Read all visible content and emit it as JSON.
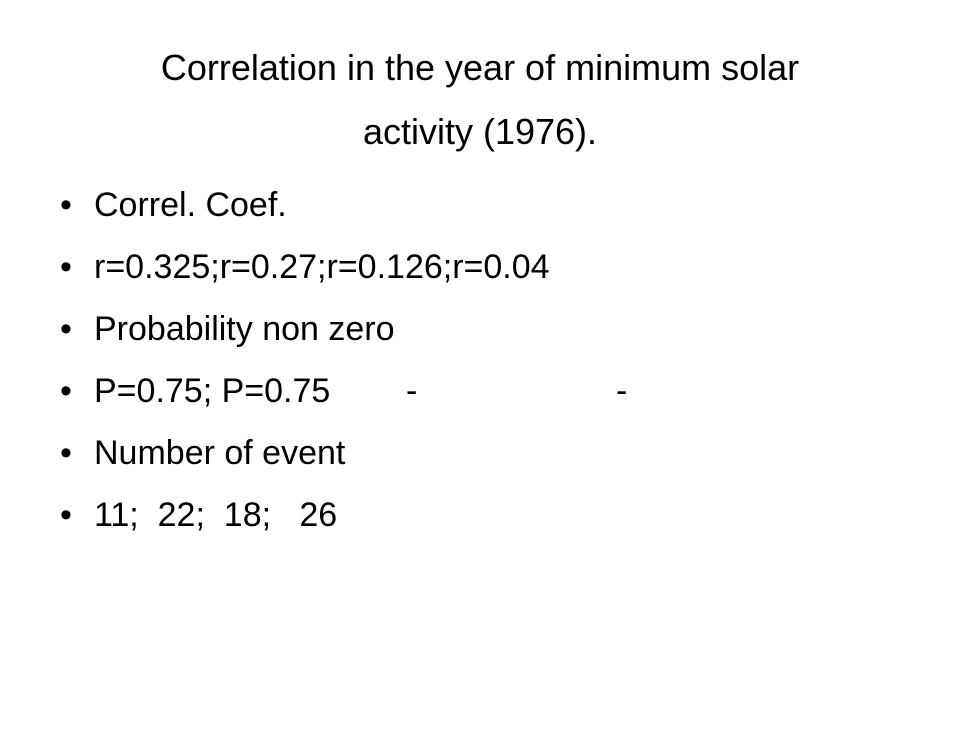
{
  "title": {
    "line1": "Correlation in the year of minimum solar",
    "line2": "activity (1976)."
  },
  "bullets": [
    {
      "text": "Correl. Coef."
    },
    {
      "text": "r=0.325;r=0.27;r=0.126;r=0.04"
    },
    {
      "text": "Probability non zero"
    },
    {
      "parts": [
        "P=0.75; P=0.75",
        "-",
        "-"
      ]
    },
    {
      "text": "Number of event"
    },
    {
      "text": "11;  22;  18;   26"
    }
  ],
  "bullet_symbol": "•"
}
